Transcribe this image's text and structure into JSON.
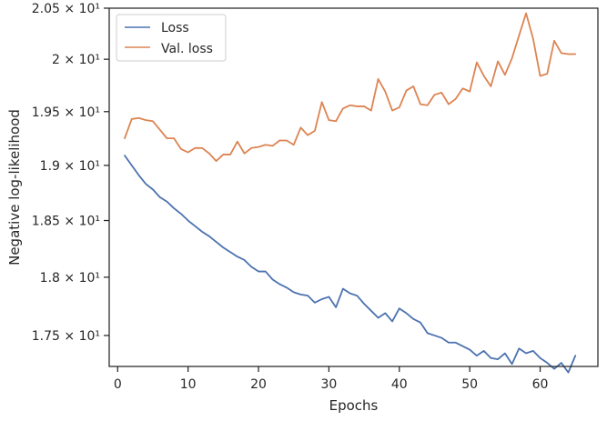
{
  "chart_data": {
    "type": "line",
    "xlabel": "Epochs",
    "ylabel": "Negative log-likelihood",
    "xlim": [
      -1.2,
      68.2
    ],
    "ylim": [
      17.24,
      20.5
    ],
    "yscale": "log",
    "grid": false,
    "legend_position": "top-left",
    "x_ticks": [
      0,
      10,
      20,
      30,
      40,
      50,
      60
    ],
    "y_ticks": [
      {
        "value": 20.5,
        "label": "2.05 × 10¹"
      },
      {
        "value": 20.0,
        "label": "2 × 10¹"
      },
      {
        "value": 19.5,
        "label": "1.95 × 10¹"
      },
      {
        "value": 19.0,
        "label": "1.9 × 10¹"
      },
      {
        "value": 18.5,
        "label": "1.85 × 10¹"
      },
      {
        "value": 18.0,
        "label": "1.8 × 10¹"
      },
      {
        "value": 17.5,
        "label": "1.75 × 10¹"
      }
    ],
    "x": [
      1,
      2,
      3,
      4,
      5,
      6,
      7,
      8,
      9,
      10,
      11,
      12,
      13,
      14,
      15,
      16,
      17,
      18,
      19,
      20,
      21,
      22,
      23,
      24,
      25,
      26,
      27,
      28,
      29,
      30,
      31,
      32,
      33,
      34,
      35,
      36,
      37,
      38,
      39,
      40,
      41,
      42,
      43,
      44,
      45,
      46,
      47,
      48,
      49,
      50,
      51,
      52,
      53,
      54,
      55,
      56,
      57,
      58,
      59,
      60,
      61,
      62,
      63,
      64,
      65
    ],
    "series": [
      {
        "name": "Loss",
        "color": "#4c72b0",
        "values": [
          19.09,
          19.0,
          18.91,
          18.83,
          18.78,
          18.71,
          18.67,
          18.61,
          18.56,
          18.5,
          18.45,
          18.4,
          18.36,
          18.31,
          18.26,
          18.22,
          18.18,
          18.15,
          18.09,
          18.05,
          18.05,
          17.98,
          17.94,
          17.91,
          17.87,
          17.85,
          17.84,
          17.78,
          17.81,
          17.83,
          17.74,
          17.9,
          17.86,
          17.84,
          17.77,
          17.71,
          17.65,
          17.69,
          17.62,
          17.73,
          17.69,
          17.64,
          17.61,
          17.52,
          17.5,
          17.48,
          17.44,
          17.44,
          17.41,
          17.38,
          17.33,
          17.37,
          17.31,
          17.3,
          17.35,
          17.26,
          17.39,
          17.35,
          17.37,
          17.31,
          17.27,
          17.22,
          17.27,
          17.19,
          17.33
        ]
      },
      {
        "name": "Val. loss",
        "color": "#dd8452",
        "values": [
          19.25,
          19.43,
          19.44,
          19.42,
          19.41,
          19.33,
          19.25,
          19.25,
          19.15,
          19.12,
          19.16,
          19.16,
          19.11,
          19.04,
          19.1,
          19.1,
          19.22,
          19.11,
          19.16,
          19.17,
          19.19,
          19.18,
          19.23,
          19.23,
          19.19,
          19.35,
          19.28,
          19.32,
          19.59,
          19.42,
          19.41,
          19.53,
          19.56,
          19.55,
          19.55,
          19.51,
          19.81,
          19.69,
          19.51,
          19.54,
          19.7,
          19.74,
          19.57,
          19.56,
          19.66,
          19.68,
          19.57,
          19.62,
          19.72,
          19.69,
          19.97,
          19.84,
          19.74,
          19.98,
          19.85,
          20.01,
          20.23,
          20.45,
          20.2,
          19.84,
          19.86,
          20.18,
          20.06,
          20.05,
          20.05
        ]
      }
    ]
  }
}
